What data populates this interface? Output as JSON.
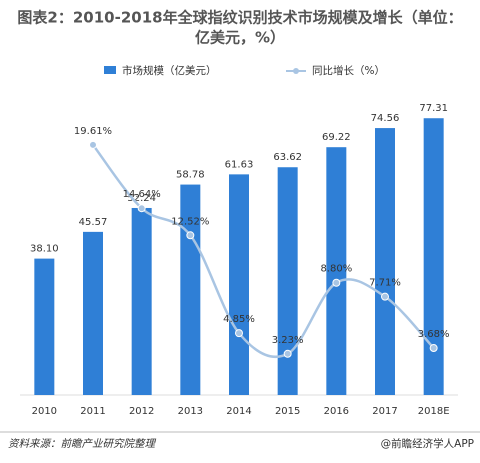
{
  "chart_data": {
    "type": "bar-line",
    "title": "图表2：2010-2018年全球指纹识别技术市场规模及增长（单位：",
    "subtitle": "亿美元，%）",
    "categories": [
      "2010",
      "2011",
      "2012",
      "2013",
      "2014",
      "2015",
      "2016",
      "2017",
      "2018E"
    ],
    "series": [
      {
        "name": "市场规模（亿美元）",
        "type": "bar",
        "color": "#2f7fd6",
        "values": [
          38.1,
          45.57,
          52.24,
          58.78,
          61.63,
          63.62,
          69.22,
          74.56,
          77.31
        ],
        "value_labels": [
          "38.10",
          "45.57",
          "52.24",
          "58.78",
          "61.63",
          "63.62",
          "69.22",
          "74.56",
          "77.31"
        ]
      },
      {
        "name": "同比增长（%）",
        "type": "line",
        "axis": "y2",
        "color": "#a9c5e3",
        "values": [
          null,
          19.61,
          14.64,
          12.52,
          4.85,
          3.23,
          8.8,
          7.71,
          3.68
        ],
        "value_labels": [
          null,
          "19.61%",
          "14.64%",
          "12.52%",
          "4.85%",
          "3.23%",
          "8.80%",
          "7.71%",
          "3.68%"
        ]
      }
    ],
    "ylim": [
      0,
      80
    ],
    "y2lim": [
      0,
      22.45
    ],
    "source": "资料来源：前瞻产业研究院整理",
    "credit": "@前瞻经济学人APP"
  }
}
